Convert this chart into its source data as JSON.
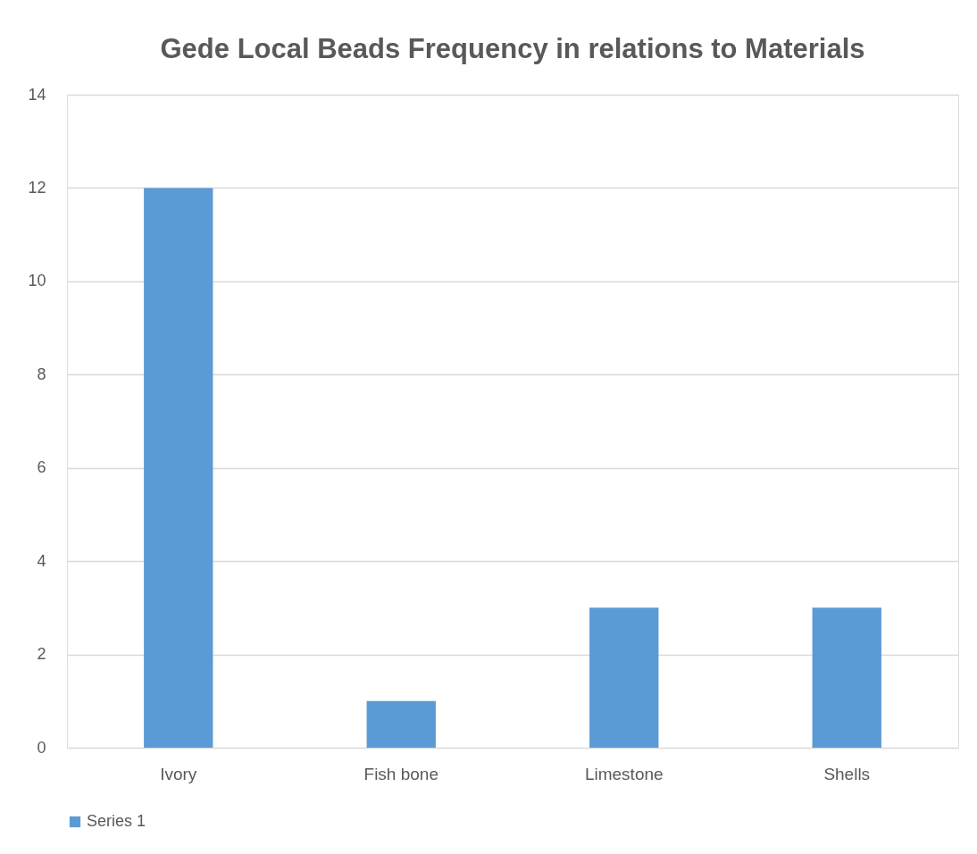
{
  "chart_data": {
    "type": "bar",
    "title": "Gede Local Beads Frequency in relations to Materials",
    "categories": [
      "Ivory",
      "Fish bone",
      "Limestone",
      "Shells"
    ],
    "series": [
      {
        "name": "Series 1",
        "color": "#5b9bd5",
        "values": [
          12,
          1,
          3,
          3
        ]
      }
    ],
    "ylim": [
      0,
      14
    ],
    "yticks": [
      0,
      2,
      4,
      6,
      8,
      10,
      12,
      14
    ],
    "grid": "y",
    "legend": "bottom"
  }
}
